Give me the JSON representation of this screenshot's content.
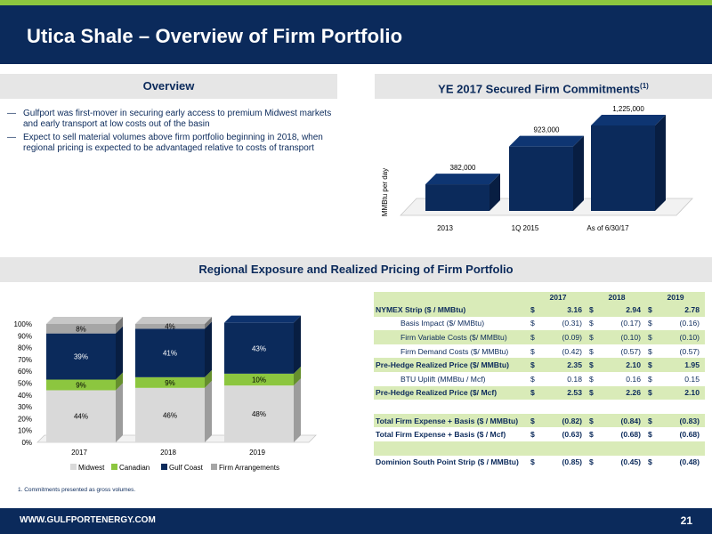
{
  "header": {
    "title": "Utica Shale – Overview of Firm Portfolio"
  },
  "overview": {
    "heading": "Overview",
    "bullets": [
      "Gulfport was first-mover in securing early access to premium Midwest markets and early transport at low costs out of the basin",
      "Expect to sell material volumes above firm portfolio beginning in 2018, when regional pricing is expected to be advantaged relative to costs of transport"
    ],
    "dash": "—"
  },
  "commitments": {
    "heading": "YE 2017 Secured Firm Commitments",
    "heading_note": "(1)",
    "ylabel": "MMBtu per day"
  },
  "regional": {
    "heading": "Regional Exposure and Realized Pricing of Firm Portfolio"
  },
  "chart_data": [
    {
      "type": "bar",
      "title": "YE 2017 Secured Firm Commitments",
      "ylabel": "MMBtu per day",
      "categories": [
        "2013",
        "1Q 2015",
        "As of 6/30/17"
      ],
      "values": [
        382000,
        923000,
        1225000
      ],
      "value_labels": [
        "382,000",
        "923,000",
        "1,225,000"
      ],
      "colors": {
        "bar": "#0b2a5b"
      }
    },
    {
      "type": "bar",
      "stacked": true,
      "percent": true,
      "categories": [
        "2017",
        "2018",
        "2019"
      ],
      "ylim": [
        0,
        100
      ],
      "yticks": [
        "0%",
        "10%",
        "20%",
        "30%",
        "40%",
        "50%",
        "60%",
        "70%",
        "80%",
        "90%",
        "100%"
      ],
      "series": [
        {
          "name": "Midwest",
          "values": [
            44,
            46,
            48
          ],
          "labels": [
            "44%",
            "46%",
            "48%"
          ],
          "color": "#d9d9d9"
        },
        {
          "name": "Canadian",
          "values": [
            9,
            9,
            10
          ],
          "labels": [
            "9%",
            "9%",
            "10%"
          ],
          "color": "#8cc63f"
        },
        {
          "name": "Gulf Coast",
          "values": [
            39,
            41,
            43
          ],
          "labels": [
            "39%",
            "41%",
            "43%"
          ],
          "color": "#0b2a5b"
        },
        {
          "name": "Firm Arrangements",
          "values": [
            8,
            4,
            0
          ],
          "labels": [
            "8%",
            "4%",
            ""
          ],
          "color": "#a6a6a6"
        }
      ],
      "legend": "bottom"
    }
  ],
  "pricing_table": {
    "columns": [
      "2017",
      "2018",
      "2019"
    ],
    "rows": [
      {
        "label": "NYMEX Strip ($ / MMBtu)",
        "values": [
          "3.16",
          "2.94",
          "2.78"
        ],
        "style": "bold",
        "shade": true
      },
      {
        "label": "Basis Impact ($/ MMBtu)",
        "values": [
          "(0.31)",
          "(0.17)",
          "(0.16)"
        ],
        "style": "indent",
        "shade": false
      },
      {
        "label": "Firm Variable Costs ($/ MMBtu)",
        "values": [
          "(0.09)",
          "(0.10)",
          "(0.10)"
        ],
        "style": "indent",
        "shade": true
      },
      {
        "label": "Firm Demand Costs ($/ MMBtu)",
        "values": [
          "(0.42)",
          "(0.57)",
          "(0.57)"
        ],
        "style": "indent",
        "shade": false
      },
      {
        "label": "Pre-Hedge Realized Price ($/ MMBtu)",
        "values": [
          "2.35",
          "2.10",
          "1.95"
        ],
        "style": "bold",
        "shade": true
      },
      {
        "label": "BTU Uplift (MMBtu / Mcf)",
        "values": [
          "0.18",
          "0.16",
          "0.15"
        ],
        "style": "indent",
        "shade": false
      },
      {
        "label": "Pre-Hedge Realized Price ($/ Mcf)",
        "values": [
          "2.53",
          "2.26",
          "2.10"
        ],
        "style": "bold",
        "shade": true
      },
      {
        "label": "",
        "values": [
          "",
          "",
          ""
        ],
        "style": "blank",
        "shade": false
      },
      {
        "label": "Total Firm Expense + Basis ($ / MMBtu)",
        "values": [
          "(0.82)",
          "(0.84)",
          "(0.83)"
        ],
        "style": "bold",
        "shade": true
      },
      {
        "label": "Total Firm Expense + Basis ($ / Mcf)",
        "values": [
          "(0.63)",
          "(0.68)",
          "(0.68)"
        ],
        "style": "bold",
        "shade": false
      },
      {
        "label": "",
        "values": [
          "",
          "",
          ""
        ],
        "style": "blank",
        "shade": true
      },
      {
        "label": "Dominion South Point Strip ($ / MMBtu)",
        "values": [
          "(0.85)",
          "(0.45)",
          "(0.48)"
        ],
        "style": "bold",
        "shade": false
      }
    ],
    "currency": "$"
  },
  "footnote": "1.      Commitments presented as gross volumes.",
  "footer": {
    "url": "WWW.GULFPORTENERGY.COM",
    "page": "21"
  },
  "colors": {
    "navy": "#0b2a5b",
    "green": "#8cc63f",
    "gray_header": "#e6e6e6",
    "table_green": "#d9ebb8"
  }
}
